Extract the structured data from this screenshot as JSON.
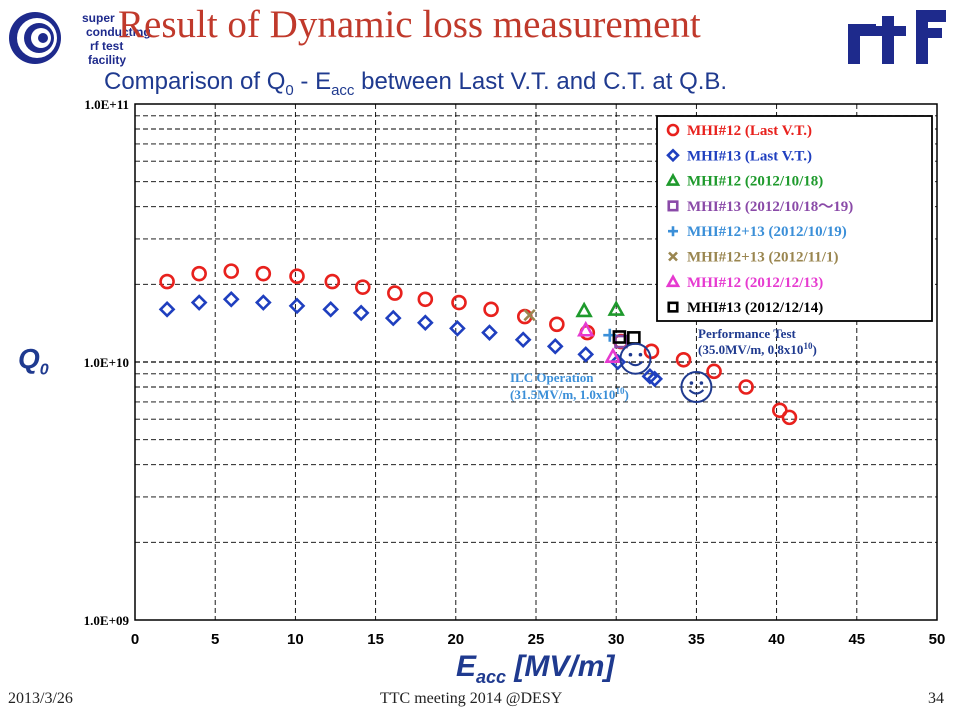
{
  "slide": {
    "title": "Result of Dynamic loss measurement",
    "subtitle_main": "Comparison of Q",
    "subtitle_sub0": "0",
    "subtitle_mid": " - E",
    "subtitle_sub1": "acc",
    "subtitle_end": " between Last V.T. and C.T. at Q.B.",
    "logo_lines": [
      "super",
      "conducting",
      "rf  test",
      "facility"
    ],
    "rtf_logo": "stf",
    "footer": {
      "date": "2013/3/26",
      "center": "TTC meeting 2014 @DESY",
      "page": "34"
    }
  },
  "axis": {
    "ylabel_main": "Q",
    "ylabel_sub": "0",
    "xlabel_main": "E",
    "xlabel_sub": "acc",
    "xlabel_unit": " [MV/m]"
  },
  "annotations": {
    "perf_line1": "Performance Test",
    "perf_line2": "(35.0MV/m, 0.8x10",
    "perf_sup": "10",
    "perf_close": ")",
    "ilc_line1": "ILC Operation",
    "ilc_line2": "(31.5MV/m, 1.0x10",
    "ilc_sup": "10",
    "ilc_close": ")"
  },
  "chart_data": {
    "type": "scatter",
    "xlim": [
      0,
      50
    ],
    "ylim": [
      1000000000,
      100000000000
    ],
    "yscale": "log",
    "xticks": [
      0,
      5,
      10,
      15,
      20,
      25,
      30,
      35,
      40,
      45,
      50
    ],
    "xtick_labels": [
      "0",
      "5",
      "10",
      "15",
      "20",
      "25",
      "30",
      "35",
      "40",
      "45",
      "50"
    ],
    "ytick_labels": [
      "1.0E+11",
      "1.0E+10",
      "1.0E+09"
    ],
    "grid": "dashed",
    "legend_position": "top-right",
    "series": [
      {
        "name": "MHI#12 (Last V.T.)",
        "marker": "circle",
        "color": "#e8211d",
        "points": [
          [
            2,
            20500000000.0
          ],
          [
            4,
            22000000000.0
          ],
          [
            6,
            22500000000.0
          ],
          [
            8,
            22000000000.0
          ],
          [
            10.1,
            21500000000.0
          ],
          [
            12.3,
            20500000000.0
          ],
          [
            14.2,
            19500000000.0
          ],
          [
            16.2,
            18500000000.0
          ],
          [
            18.1,
            17500000000.0
          ],
          [
            20.2,
            17000000000.0
          ],
          [
            22.2,
            16000000000.0
          ],
          [
            24.3,
            15000000000.0
          ],
          [
            26.3,
            14000000000.0
          ],
          [
            28.2,
            13000000000.0
          ],
          [
            30.3,
            12000000000.0
          ],
          [
            32.2,
            11000000000.0
          ],
          [
            34.2,
            10200000000.0
          ],
          [
            36.1,
            9200000000.0
          ],
          [
            38.1,
            8000000000.0
          ],
          [
            40.2,
            6500000000.0
          ],
          [
            40.8,
            6100000000.0
          ]
        ]
      },
      {
        "name": "MHI#13 (Last V.T.)",
        "marker": "diamond",
        "color": "#1f3fbf",
        "points": [
          [
            2,
            16000000000.0
          ],
          [
            4,
            17000000000.0
          ],
          [
            6,
            17500000000.0
          ],
          [
            8,
            17000000000.0
          ],
          [
            10.1,
            16500000000.0
          ],
          [
            12.2,
            16000000000.0
          ],
          [
            14.1,
            15500000000.0
          ],
          [
            16.1,
            14800000000.0
          ],
          [
            18.1,
            14200000000.0
          ],
          [
            20.1,
            13500000000.0
          ],
          [
            22.1,
            13000000000.0
          ],
          [
            24.2,
            12200000000.0
          ],
          [
            26.2,
            11500000000.0
          ],
          [
            28.1,
            10700000000.0
          ],
          [
            30.1,
            10000000000.0
          ],
          [
            32.1,
            8800000000.0
          ],
          [
            32.4,
            8600000000.0
          ]
        ]
      },
      {
        "name": "MHI#12 (2012/10/18)",
        "marker": "triangle",
        "color": "#1e9a2c",
        "points": [
          [
            28,
            15800000000.0
          ],
          [
            30,
            16000000000.0
          ]
        ]
      },
      {
        "name": "MHI#13 (2012/10/18～19)",
        "marker": "square",
        "color": "#8a4aa8",
        "points": [
          [
            30.3,
            12000000000.0
          ]
        ]
      },
      {
        "name": "MHI#12+13 (2012/10/19)",
        "marker": "plus",
        "color": "#3b8fd8",
        "points": [
          [
            29.6,
            12700000000.0
          ]
        ]
      },
      {
        "name": "MHI#12+13 (2012/11/1)",
        "marker": "x",
        "color": "#9a8650",
        "points": [
          [
            24.6,
            15200000000.0
          ]
        ]
      },
      {
        "name": "MHI#12 (2012/12/13)",
        "marker": "triangle",
        "color": "#e63ad0",
        "points": [
          [
            28.1,
            13300000000.0
          ],
          [
            29.8,
            10500000000.0
          ]
        ]
      },
      {
        "name": "MHI#13 (2012/12/14)",
        "marker": "square",
        "color": "#000000",
        "points": [
          [
            30.2,
            12500000000.0
          ],
          [
            31.1,
            12400000000.0
          ]
        ]
      }
    ],
    "smiley_markers": [
      {
        "x": 31.2,
        "y": 10300000000.0,
        "color": "#1f3a8f"
      },
      {
        "x": 35.0,
        "y": 8000000000.0,
        "color": "#1f3a8f"
      }
    ]
  }
}
